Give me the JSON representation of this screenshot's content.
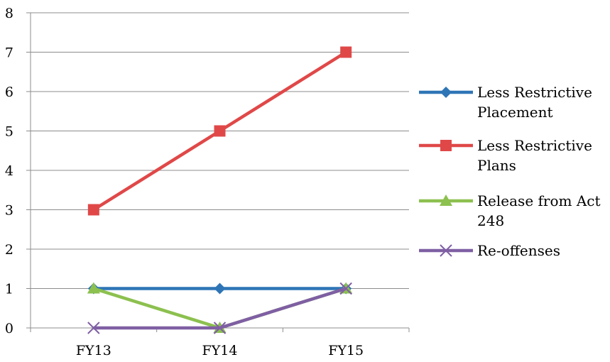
{
  "chart_data": {
    "type": "line",
    "categories": [
      "FY13",
      "FY14",
      "FY15"
    ],
    "ylim": [
      0,
      8
    ],
    "yticks": [
      0,
      1,
      2,
      3,
      4,
      5,
      6,
      7,
      8
    ],
    "grid": true,
    "legend_position": "right",
    "series": [
      {
        "name": "Less Restrictive Placement",
        "name_lines": [
          "Less Restrictive",
          "Placement"
        ],
        "values": [
          1,
          1,
          1
        ],
        "color": "#2e75b6",
        "marker": "diamond"
      },
      {
        "name": "Less Restrictive Plans",
        "name_lines": [
          "Less Restrictive",
          "Plans"
        ],
        "values": [
          3,
          5,
          7
        ],
        "color": "#e04848",
        "marker": "square"
      },
      {
        "name": "Release from Act 248",
        "name_lines": [
          "Release from Act",
          "248"
        ],
        "values": [
          1,
          0,
          1
        ],
        "color": "#8cc04f",
        "marker": "triangle"
      },
      {
        "name": "Re-offenses",
        "name_lines": [
          "Re-offenses"
        ],
        "values": [
          0,
          0,
          1
        ],
        "color": "#7f5fa3",
        "marker": "x"
      }
    ]
  }
}
